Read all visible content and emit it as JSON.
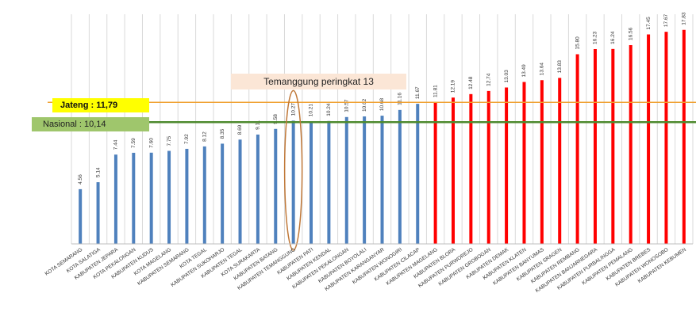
{
  "chart_data": {
    "type": "bar",
    "categories": [
      "KOTA SEMARANG",
      "KOTA SALATIGA",
      "KABUPATEN JEPARA",
      "KOTA PEKALONGAN",
      "KABUPATEN KUDUS",
      "KOTA MAGELANG",
      "KABUPATEN SEMARANG",
      "KOTA TEGAL",
      "KABUPATEN SUKOHARJO",
      "KABUPATEN TEGAL",
      "KOTA SURAKARTA",
      "KABUPATEN BATANG",
      "KABUPATEN TEMANGGUNG",
      "KABUPATEN PATI",
      "KABUPATEN KENDAL",
      "KABUPATEN PEKALONGAN",
      "KABUPATEN BOYOLALI",
      "KABUPATEN KARANGANYAR",
      "KABUPATEN WONOGIRI",
      "KABUPATEN CILACAP",
      "KABUPATEN MAGELANG",
      "KABUPATEN BLORA",
      "KABUPATEN PURWOREJO",
      "KABUPATEN GROBOGAN",
      "KABUPATEN DEMAK",
      "KABUPATEN KLATEN",
      "KABUPATEN BANYUMAS",
      "KABUPATEN SRAGEN",
      "KABUPATEN REMBANG",
      "KABUPATEN BANJARNEGARA",
      "KABUPATEN PURBALINGGA",
      "KABUPATEN PEMALANG",
      "KABUPATEN BREBES",
      "KABUPATEN WONOSOBO",
      "KABUPATEN KEBUMEN"
    ],
    "values": [
      4.56,
      5.14,
      7.44,
      7.59,
      7.6,
      7.75,
      7.92,
      8.12,
      8.35,
      8.69,
      9.11,
      9.58,
      10.27,
      10.21,
      10.24,
      10.57,
      10.62,
      10.68,
      11.16,
      11.67,
      11.81,
      12.19,
      12.48,
      12.74,
      13.03,
      13.49,
      13.64,
      13.83,
      15.8,
      16.23,
      16.24,
      16.56,
      17.45,
      17.67,
      17.83
    ],
    "value_labels": [
      "4.56",
      "5.14",
      "7.44",
      "7.59",
      "7.60",
      "7.75",
      "7.92",
      "8.12",
      "8.35",
      "8.69",
      "9.11",
      "9.58",
      "10.27",
      "10.21",
      "10.24",
      "10.57",
      "10.62",
      "10.68",
      "11.16",
      "11.67",
      "11.81",
      "12.19",
      "12.48",
      "12.74",
      "13.03",
      "13.49",
      "13.64",
      "13.83",
      "15.80",
      "16.23",
      "16.24",
      "16.56",
      "17.45",
      "17.67",
      "17.83"
    ],
    "bar_colors": {
      "below": "#4f81bd",
      "above": "#ff0000"
    },
    "reference_lines": {
      "jateng": {
        "label": "Jateng : 11,79",
        "value": 11.79,
        "color": "#f0a030"
      },
      "nasional": {
        "label": "Nasional : 10,14",
        "value": 10.14,
        "color": "#4e8a2e"
      }
    },
    "annotation": {
      "text": "Temanggung  peringkat 13",
      "highlight_index": 12,
      "color": "#c07838"
    },
    "ylim": [
      0,
      19
    ],
    "grid": "vertical"
  }
}
